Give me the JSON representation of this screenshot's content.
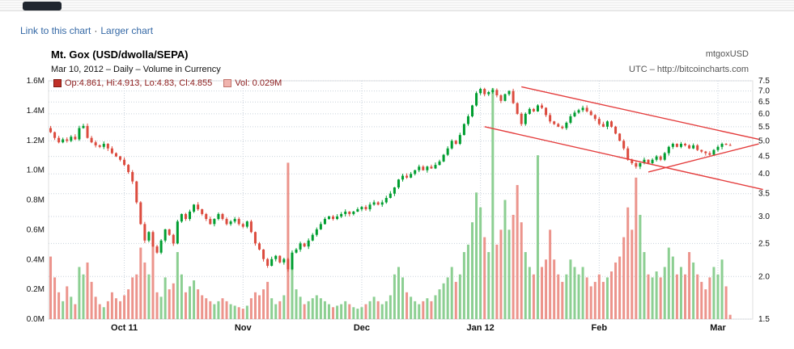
{
  "links": {
    "link_to_chart": "Link to this chart",
    "separator": "·",
    "larger_chart": "Larger chart"
  },
  "header": {
    "title": "Mt. Gox (USD/dwolla/SEPA)",
    "symbol": "mtgoxUSD",
    "subtitle": "Mar 10, 2012 – Daily – Volume in Currency",
    "source_note": "UTC – http://bitcoincharts.com",
    "legend": {
      "ohlc_label": "Op:4.861, Hi:4.913, Lo:4.83, Cl:4.855",
      "volume_label": "Vol: 0.029M"
    }
  },
  "chart_data": {
    "type": "candlestick+volume",
    "title": "Mt. Gox (USD/dwolla/SEPA)",
    "period": "Daily",
    "start_date": "2011-09-26",
    "end_date": "2012-03-10",
    "price_axis": {
      "side": "right",
      "scale": "log",
      "ticks": [
        1.5,
        2.0,
        2.5,
        3.0,
        3.5,
        4.0,
        4.5,
        5.0,
        5.5,
        6.0,
        6.5,
        7.0,
        7.5
      ],
      "tick_labels": [
        "1.5",
        "2.0",
        "2.5",
        "3.0",
        "3.5",
        "4.0",
        "4.5",
        "5.0",
        "5.5",
        "6.0",
        "6.5",
        "7.0",
        "7.5"
      ],
      "range": [
        1.5,
        7.5
      ]
    },
    "volume_axis": {
      "side": "left",
      "scale": "linear",
      "max_m": 1.6,
      "ticks": [
        0.0,
        0.2,
        0.4,
        0.6,
        0.8,
        1.0,
        1.2,
        1.4,
        1.6
      ],
      "tick_labels": [
        "0.0M",
        "0.2M",
        "0.4M",
        "0.6M",
        "0.8M",
        "1.0M",
        "1.2M",
        "1.4M",
        "1.6M"
      ]
    },
    "x_axis": {
      "tick_labels": [
        "Oct 11",
        "Nov",
        "Dec",
        "Jan 12",
        "Feb",
        "Mar"
      ],
      "tick_day_indices": [
        18,
        47,
        76,
        105,
        134,
        163
      ],
      "grid": true
    },
    "first_open": 5.45,
    "closes": [
      5.3,
      5.1,
      4.95,
      5.05,
      5.0,
      5.14,
      5.05,
      5.45,
      5.53,
      5.1,
      4.95,
      4.85,
      4.8,
      4.9,
      4.75,
      4.6,
      4.5,
      4.4,
      4.25,
      4.05,
      3.8,
      3.3,
      2.85,
      2.55,
      2.7,
      2.45,
      2.35,
      2.55,
      2.75,
      2.65,
      2.5,
      2.9,
      3.05,
      2.95,
      3.1,
      3.25,
      3.15,
      3.05,
      2.95,
      2.85,
      2.95,
      3.05,
      2.95,
      2.85,
      2.9,
      2.95,
      2.85,
      2.8,
      2.9,
      2.7,
      2.5,
      2.4,
      2.25,
      2.15,
      2.25,
      2.3,
      2.2,
      2.25,
      2.1,
      2.35,
      2.4,
      2.5,
      2.45,
      2.55,
      2.65,
      2.75,
      2.85,
      2.95,
      3.0,
      2.95,
      3.0,
      3.05,
      3.1,
      3.05,
      3.1,
      3.15,
      3.2,
      3.15,
      3.25,
      3.3,
      3.25,
      3.3,
      3.4,
      3.5,
      3.65,
      3.85,
      3.95,
      3.9,
      4.0,
      4.1,
      4.2,
      4.1,
      4.2,
      4.15,
      4.25,
      4.35,
      4.55,
      4.75,
      5.0,
      4.9,
      5.2,
      5.6,
      5.9,
      6.35,
      6.9,
      7.1,
      6.85,
      6.95,
      7.05,
      6.8,
      6.55,
      6.85,
      7.0,
      6.45,
      6.0,
      5.6,
      6.0,
      6.2,
      6.1,
      6.35,
      6.25,
      5.95,
      5.7,
      5.6,
      5.5,
      5.45,
      5.65,
      5.9,
      6.05,
      6.15,
      6.25,
      6.1,
      5.95,
      5.8,
      5.6,
      5.5,
      5.7,
      5.5,
      5.25,
      5.0,
      4.75,
      4.4,
      4.3,
      4.2,
      4.3,
      4.4,
      4.3,
      4.4,
      4.5,
      4.4,
      4.6,
      4.8,
      4.9,
      4.8,
      4.9,
      4.85,
      4.75,
      4.85,
      4.7,
      4.65,
      4.6,
      4.55,
      4.7,
      4.8,
      4.9,
      4.87,
      4.855
    ],
    "volumes_m": [
      0.42,
      0.28,
      0.18,
      0.12,
      0.22,
      0.15,
      0.1,
      0.35,
      0.3,
      0.38,
      0.25,
      0.15,
      0.1,
      0.08,
      0.12,
      0.18,
      0.14,
      0.12,
      0.16,
      0.2,
      0.28,
      0.3,
      0.48,
      0.38,
      0.3,
      0.55,
      0.18,
      0.15,
      0.28,
      0.2,
      0.24,
      0.45,
      0.3,
      0.18,
      0.22,
      0.26,
      0.2,
      0.16,
      0.14,
      0.12,
      0.1,
      0.12,
      0.14,
      0.12,
      0.1,
      0.09,
      0.08,
      0.07,
      0.09,
      0.14,
      0.18,
      0.16,
      0.2,
      0.25,
      0.14,
      0.1,
      0.12,
      0.16,
      1.05,
      0.35,
      0.2,
      0.15,
      0.1,
      0.12,
      0.14,
      0.16,
      0.14,
      0.12,
      0.1,
      0.08,
      0.09,
      0.1,
      0.12,
      0.1,
      0.08,
      0.07,
      0.08,
      0.1,
      0.12,
      0.15,
      0.12,
      0.1,
      0.12,
      0.16,
      0.3,
      0.35,
      0.28,
      0.18,
      0.15,
      0.12,
      0.1,
      0.12,
      0.14,
      0.12,
      0.16,
      0.2,
      0.24,
      0.28,
      0.35,
      0.25,
      0.3,
      0.45,
      0.5,
      0.65,
      0.85,
      0.75,
      0.55,
      0.45,
      1.55,
      0.5,
      0.6,
      0.8,
      0.6,
      0.7,
      0.9,
      0.65,
      0.45,
      0.35,
      0.3,
      1.1,
      0.35,
      0.4,
      0.6,
      0.4,
      0.3,
      0.25,
      0.3,
      0.4,
      0.35,
      0.3,
      0.35,
      0.28,
      0.22,
      0.25,
      0.3,
      0.25,
      0.28,
      0.32,
      0.38,
      0.42,
      0.55,
      0.75,
      0.6,
      0.95,
      0.7,
      0.45,
      0.3,
      0.28,
      0.32,
      0.28,
      0.35,
      0.48,
      0.42,
      0.3,
      0.35,
      0.3,
      0.45,
      0.38,
      0.3,
      0.25,
      0.2,
      0.28,
      0.35,
      0.3,
      0.4,
      0.22,
      0.029
    ],
    "last_candle": {
      "open": 4.861,
      "high": 4.913,
      "low": 4.83,
      "close": 4.855
    },
    "trendlines": [
      {
        "from_day": 115,
        "from_price": 7.2,
        "to_day": 173,
        "to_price": 5.05
      },
      {
        "from_day": 106,
        "from_price": 5.5,
        "to_day": 174,
        "to_price": 3.6
      },
      {
        "from_day": 146,
        "from_price": 4.05,
        "to_day": 173,
        "to_price": 4.9
      }
    ],
    "colors": {
      "up": "#009e30",
      "down": "#dc4b3e",
      "vol_up": "#8ccf92",
      "vol_down": "#ec948c",
      "trend": "#e43d3d",
      "grid": "#c9d2dc",
      "axis_text": "#111111",
      "link": "#3468a5",
      "legend_text": "#8b1a1a"
    }
  }
}
